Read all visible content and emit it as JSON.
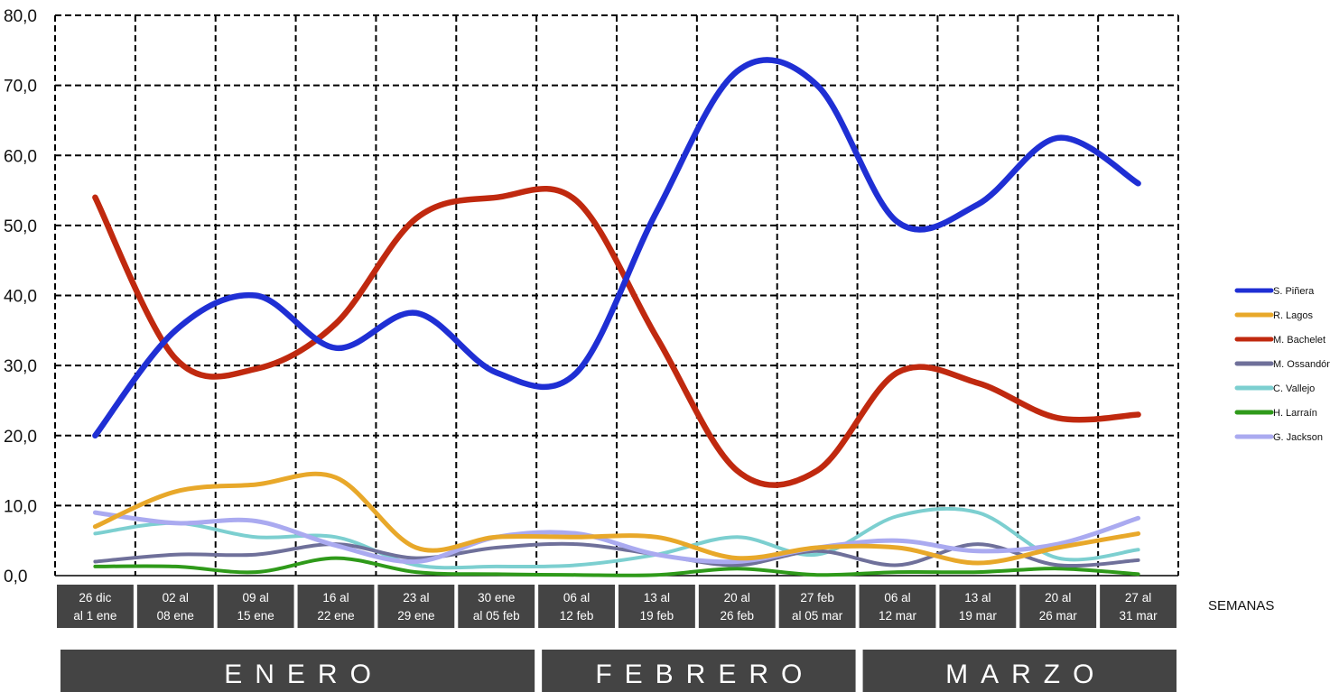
{
  "chart_data": {
    "type": "line",
    "categories": [
      [
        "26 dic",
        "al 1 ene"
      ],
      [
        "02 al",
        "08 ene"
      ],
      [
        "09 al",
        "15 ene"
      ],
      [
        "16 al",
        "22 ene"
      ],
      [
        "23 al",
        "29 ene"
      ],
      [
        "30 ene",
        "al 05 feb"
      ],
      [
        "06 al",
        "12 feb"
      ],
      [
        "13 al",
        "19 feb"
      ],
      [
        "20 al",
        "26 feb"
      ],
      [
        "27 feb",
        "al 05 mar"
      ],
      [
        "06 al",
        "12 mar"
      ],
      [
        "13 al",
        "19 mar"
      ],
      [
        "20 al",
        "26 mar"
      ],
      [
        "27 al",
        "31 mar"
      ]
    ],
    "month_groups": [
      {
        "label": "ENERO",
        "span": [
          0,
          5
        ]
      },
      {
        "label": "FEBRERO",
        "span": [
          6,
          9
        ]
      },
      {
        "label": "MARZO",
        "span": [
          10,
          13
        ]
      }
    ],
    "xlabel": "SEMANAS",
    "ylabel": "",
    "ylim": [
      0,
      80
    ],
    "yticks": [
      "0,0",
      "10,0",
      "20,0",
      "30,0",
      "40,0",
      "50,0",
      "60,0",
      "70,0",
      "80,0"
    ],
    "grid": true,
    "legend_position": "right",
    "series": [
      {
        "name": "S. Piñera",
        "color": "#1f2fd4",
        "width": 6.5,
        "values": [
          20,
          35,
          40,
          32.5,
          37.5,
          29,
          29,
          52,
          72,
          70,
          50.5,
          53,
          62.5,
          56
        ]
      },
      {
        "name": "R. Lagos",
        "color": "#e8a82a",
        "width": 5,
        "values": [
          7,
          12,
          13,
          14,
          4,
          5.5,
          5.5,
          5.5,
          2.5,
          4,
          4,
          1.8,
          4,
          6
        ]
      },
      {
        "name": "M. Bachelet",
        "color": "#c0290f",
        "width": 6.5,
        "values": [
          54,
          31,
          29.5,
          36,
          51,
          54,
          53.5,
          34,
          15,
          15,
          29,
          27.5,
          22.5,
          23
        ]
      },
      {
        "name": "M. Ossandón",
        "color": "#6f709a",
        "width": 4,
        "values": [
          2,
          3,
          3,
          4.5,
          2.5,
          4,
          4.5,
          3,
          1.5,
          3.5,
          1.5,
          4.5,
          1.5,
          2.2
        ]
      },
      {
        "name": "C. Vallejo",
        "color": "#7ccfd0",
        "width": 4,
        "values": [
          6,
          7.5,
          5.5,
          5.5,
          1.5,
          1.3,
          1.5,
          3,
          5.5,
          3,
          8.5,
          9,
          2.5,
          3.7
        ]
      },
      {
        "name": "H. Larraín",
        "color": "#2f9a1a",
        "width": 4,
        "values": [
          1.3,
          1.3,
          0.5,
          2.5,
          0.5,
          0.2,
          0.1,
          0.1,
          1,
          0.1,
          0.5,
          0.5,
          1,
          0.2
        ]
      },
      {
        "name": "G. Jackson",
        "color": "#aaaaf0",
        "width": 5,
        "values": [
          9,
          7.5,
          7.8,
          4.3,
          2,
          5.5,
          6,
          3,
          2,
          4,
          5,
          3.5,
          4.5,
          8.2
        ]
      }
    ]
  }
}
